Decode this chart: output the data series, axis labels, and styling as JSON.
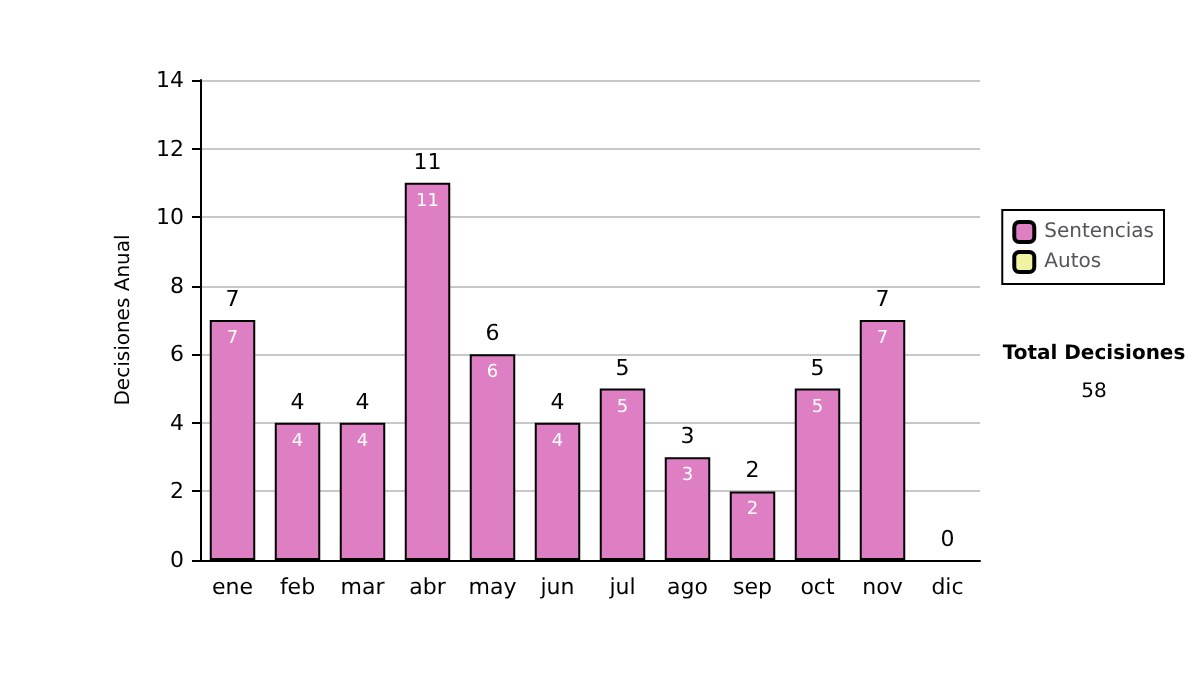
{
  "chart_data": {
    "type": "bar",
    "ylabel": "Decisiones Anual",
    "categories": [
      "ene",
      "feb",
      "mar",
      "abr",
      "may",
      "jun",
      "jul",
      "ago",
      "sep",
      "oct",
      "nov",
      "dic"
    ],
    "series": [
      {
        "name": "Sentencias",
        "color": "#de7fc4",
        "values": [
          7,
          4,
          4,
          11,
          6,
          4,
          5,
          3,
          2,
          5,
          7,
          0
        ],
        "value_labels": [
          "7",
          "4",
          "4",
          "11",
          "6",
          "4",
          "5",
          "3",
          "2",
          "5",
          "7",
          null
        ]
      },
      {
        "name": "Autos",
        "color": "#f0f4a0",
        "values": [
          0,
          0,
          0,
          0,
          0,
          0,
          0,
          0,
          0,
          0,
          0,
          0
        ]
      }
    ],
    "stacked": true,
    "totals": [
      "7",
      "4",
      "4",
      "11",
      "6",
      "4",
      "5",
      "3",
      "2",
      "5",
      "7",
      "0"
    ],
    "ylim": [
      0,
      14
    ],
    "yticks": [
      0,
      2,
      4,
      6,
      8,
      10,
      12,
      14
    ],
    "grid": "y",
    "legend": "right",
    "annotations": [
      "Total Decisiones",
      "58"
    ]
  }
}
